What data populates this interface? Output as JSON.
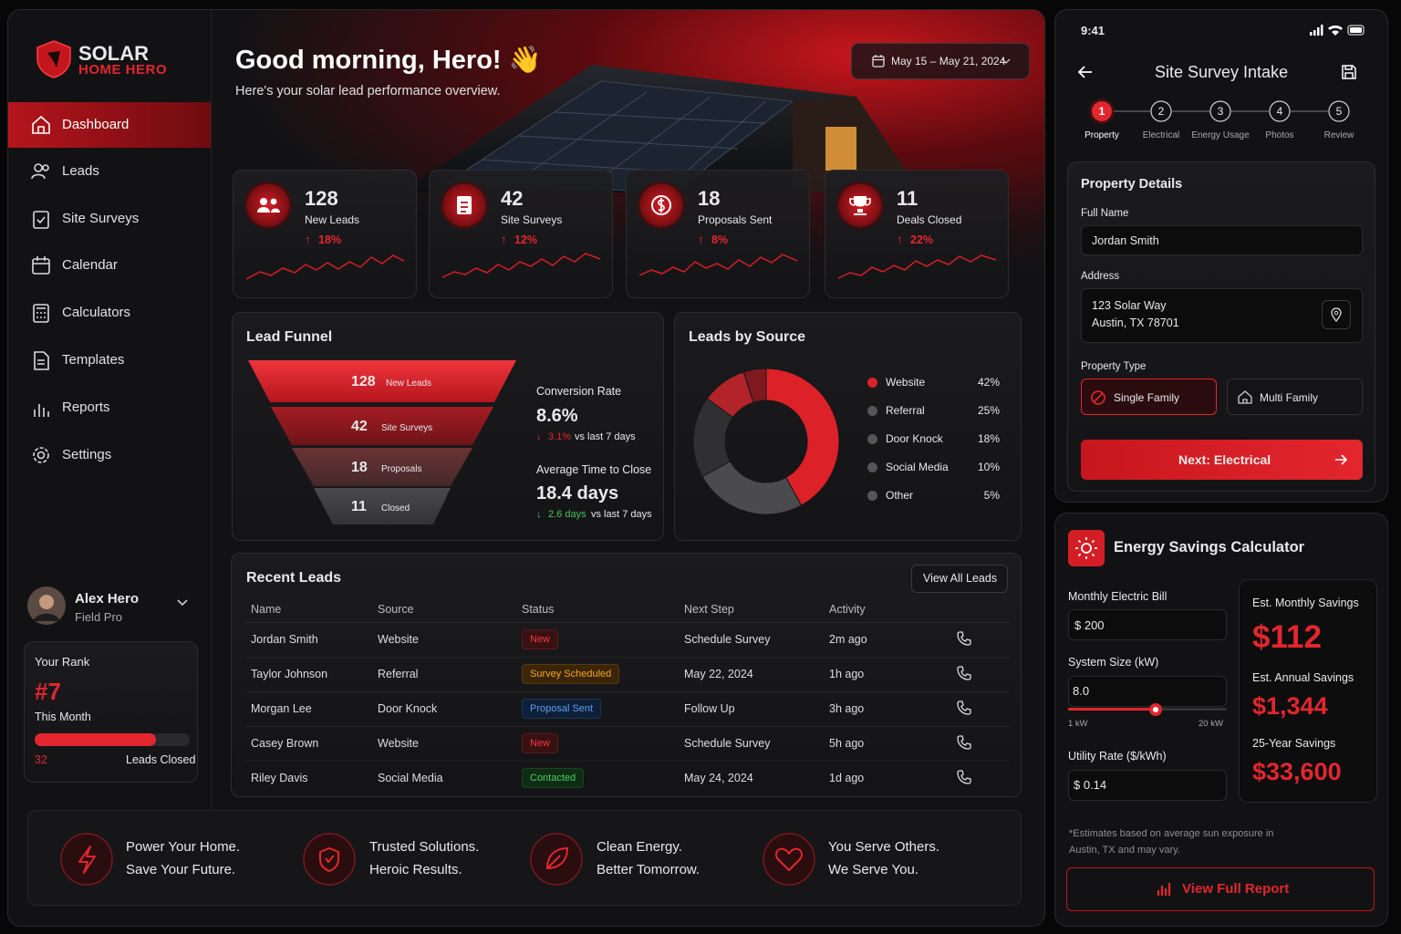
{
  "brand": {
    "name": "SOLAR",
    "tagline": "HOME HERO"
  },
  "nav": [
    "Dashboard",
    "Leads",
    "Site Surveys",
    "Calendar",
    "Calculators",
    "Templates",
    "Reports",
    "Settings"
  ],
  "user": {
    "name": "Alex Hero",
    "role": "Field Pro"
  },
  "rank": {
    "title": "Your Rank",
    "rank": "#7",
    "period": "This Month",
    "count": 32,
    "count_label": "Leads Closed"
  },
  "header": {
    "greeting": "Good morning, Hero! 👋",
    "subtitle": "Here's your solar lead performance overview.",
    "date_range": "May 15 – May 21, 2024"
  },
  "kpis": [
    {
      "value": 128,
      "label": "New Leads",
      "change": "18%"
    },
    {
      "value": 42,
      "label": "Site Surveys",
      "change": "12%"
    },
    {
      "value": 18,
      "label": "Proposals Sent",
      "change": "8%"
    },
    {
      "value": 11,
      "label": "Deals Closed",
      "change": "22%"
    }
  ],
  "funnel": {
    "title": "Lead Funnel",
    "stages": [
      {
        "value": 128,
        "label": "New Leads"
      },
      {
        "value": 42,
        "label": "Site Surveys"
      },
      {
        "value": 18,
        "label": "Proposals"
      },
      {
        "value": 11,
        "label": "Closed"
      }
    ],
    "conversion_rate": {
      "label": "Conversion Rate",
      "value": "8.6%",
      "change": "3.1%",
      "compare": "vs last 7 days"
    },
    "avg_time": {
      "label": "Average Time to Close",
      "value": "18.4 days",
      "change": "2.6 days",
      "compare": "vs last 7 days"
    }
  },
  "leads_by_source": {
    "type": "pie",
    "title": "Leads by Source",
    "categories": [
      "Website",
      "Referral",
      "Door Knock",
      "Social Media",
      "Other"
    ],
    "values": [
      42,
      25,
      18,
      10,
      5
    ],
    "value_labels": [
      "42%",
      "25%",
      "18%",
      "10%",
      "5%"
    ],
    "colors": [
      "#dc2128",
      "#4b4b4e",
      "#303033",
      "#b3232a",
      "#7e1a1f"
    ]
  },
  "recent_leads": {
    "title": "Recent Leads",
    "button": "View All Leads",
    "columns": [
      "Name",
      "Source",
      "Status",
      "Next Step",
      "Activity"
    ],
    "rows": [
      [
        "Jordan Smith",
        "Website",
        "New",
        "Schedule Survey",
        "2m ago"
      ],
      [
        "Taylor Johnson",
        "Referral",
        "Survey Scheduled",
        "May 22, 2024",
        "1h ago"
      ],
      [
        "Morgan Lee",
        "Door Knock",
        "Proposal Sent",
        "Follow Up",
        "3h ago"
      ],
      [
        "Casey Brown",
        "Website",
        "New",
        "Schedule Survey",
        "5h ago"
      ],
      [
        "Riley Davis",
        "Social Media",
        "Contacted",
        "May 24, 2024",
        "1d ago"
      ]
    ]
  },
  "footer": [
    {
      "line1": "Power Your Home.",
      "line2": "Save Your Future."
    },
    {
      "line1": "Trusted Solutions.",
      "line2": "Heroic Results."
    },
    {
      "line1": "Clean Energy.",
      "line2": "Better Tomorrow."
    },
    {
      "line1": "You Serve Others.",
      "line2": "We Serve You."
    }
  ],
  "survey": {
    "time": "9:41",
    "title": "Site Survey Intake",
    "steps": [
      {
        "number": 1,
        "label": "Property"
      },
      {
        "number": 2,
        "label": "Electrical"
      },
      {
        "number": 3,
        "label": "Energy Usage"
      },
      {
        "number": 4,
        "label": "Photos"
      },
      {
        "number": 5,
        "label": "Review"
      }
    ],
    "section": "Property Details",
    "full_name_label": "Full Name",
    "full_name": "Jordan Smith",
    "address_label": "Address",
    "address": [
      "123 Solar Way",
      "Austin, TX 78701"
    ],
    "property_type_label": "Property Type",
    "property_types": [
      "Single Family",
      "Multi Family"
    ],
    "next": "Next: Electrical"
  },
  "calculator": {
    "title": "Energy Savings Calculator",
    "bill_label": "Monthly Electric Bill",
    "bill": "$ 200",
    "size_label": "System Size (kW)",
    "size": "8.0",
    "slider_min": "1 kW",
    "slider_max": "20 kW",
    "rate_label": "Utility Rate ($/kWh)",
    "rate": "$ 0.14",
    "monthly_label": "Est. Monthly Savings",
    "monthly": "$112",
    "annual_label": "Est. Annual Savings",
    "annual": "$1,344",
    "lifetime_label": "25-Year Savings",
    "lifetime": "$33,600",
    "note": "*Estimates based on average sun exposure in Austin, TX and may vary.",
    "report_button": "View Full Report"
  }
}
